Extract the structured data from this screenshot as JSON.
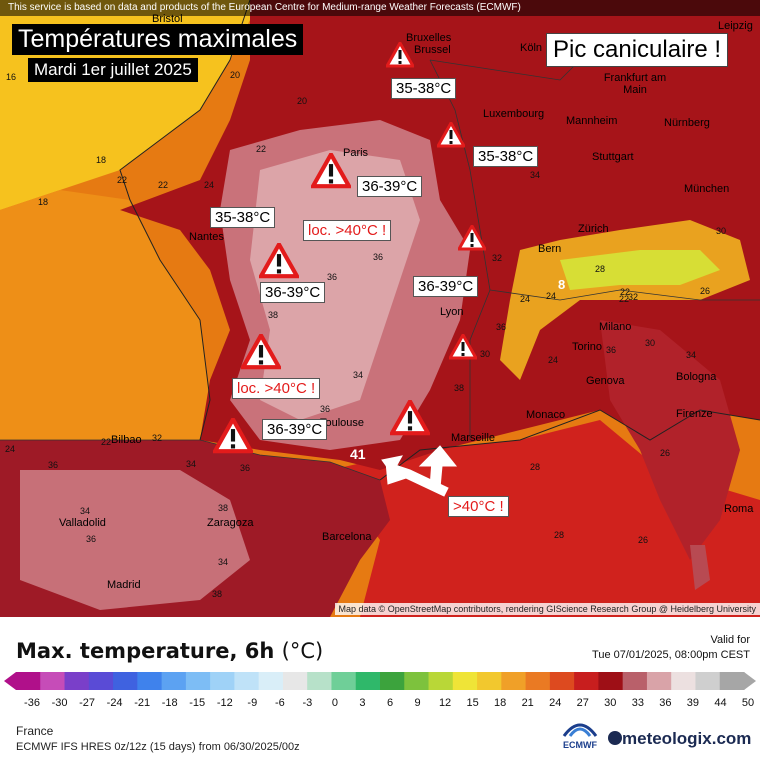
{
  "credit_top": "This service is based on data and products of the European Centre for Medium-range Weather Forecasts (ECMWF)",
  "title": "Températures maximales",
  "subtitle": "Mardi 1er juillet 2025",
  "headline": "Pic caniculaire !",
  "cities": [
    {
      "name": "Bristol"
    },
    {
      "name": "Bruxelles"
    },
    {
      "name": "Brussel"
    },
    {
      "name": "Köln"
    },
    {
      "name": "Leipzig"
    },
    {
      "name": "Frankfurt am Main"
    },
    {
      "name": "Luxembourg"
    },
    {
      "name": "Mannheim"
    },
    {
      "name": "Nürnberg"
    },
    {
      "name": "Paris"
    },
    {
      "name": "Stuttgart"
    },
    {
      "name": "München"
    },
    {
      "name": "Nantes"
    },
    {
      "name": "Zürich"
    },
    {
      "name": "Bern"
    },
    {
      "name": "Lyon"
    },
    {
      "name": "Milano"
    },
    {
      "name": "Torino"
    },
    {
      "name": "Genova"
    },
    {
      "name": "Bologna"
    },
    {
      "name": "Monaco"
    },
    {
      "name": "Marseille"
    },
    {
      "name": "Firenze"
    },
    {
      "name": "Bilbao"
    },
    {
      "name": "Valladolid"
    },
    {
      "name": "Zaragoza"
    },
    {
      "name": "Barcelona"
    },
    {
      "name": "Madrid"
    },
    {
      "name": "Roma"
    },
    {
      "name": "Toulouse"
    }
  ],
  "range_labels": [
    {
      "text": "35-38°C",
      "style": "black"
    },
    {
      "text": "35-38°C",
      "style": "black"
    },
    {
      "text": "36-39°C",
      "style": "black"
    },
    {
      "text": "35-38°C",
      "style": "black"
    },
    {
      "text": "loc. >40°C !",
      "style": "red"
    },
    {
      "text": "36-39°C",
      "style": "black"
    },
    {
      "text": "36-39°C",
      "style": "black"
    },
    {
      "text": "loc. >40°C !",
      "style": "red"
    },
    {
      "text": "36-39°C",
      "style": "black"
    },
    {
      "text": ">40°C !",
      "style": "red"
    }
  ],
  "warning_icon": "warning-triangle-icon",
  "map_numbers": [
    "16",
    "20",
    "18",
    "22",
    "20",
    "18",
    "22",
    "24",
    "34",
    "36",
    "38",
    "36",
    "34",
    "36",
    "38",
    "36",
    "32",
    "30",
    "34",
    "36",
    "24",
    "22",
    "28",
    "26",
    "30",
    "34",
    "28",
    "26",
    "22",
    "24",
    "32",
    "34",
    "36",
    "38",
    "36",
    "36",
    "38",
    "34",
    "41",
    "8",
    "28",
    "24",
    "22",
    "26",
    "30",
    "32",
    "22",
    "24"
  ],
  "map_credit": "Map data © OpenStreetMap contributors, rendering GIScience Research Group @ Heidelberg University",
  "legend": {
    "title": "Max. temperature, 6h",
    "unit": "(°C)",
    "valid_label": "Valid for",
    "valid_time": "Tue 07/01/2025, 08:00pm CEST",
    "ticks": [
      "-36",
      "-30",
      "-27",
      "-24",
      "-21",
      "-18",
      "-15",
      "-12",
      "-9",
      "-6",
      "-3",
      "0",
      "3",
      "6",
      "9",
      "12",
      "15",
      "18",
      "21",
      "24",
      "27",
      "30",
      "33",
      "36",
      "39",
      "44",
      "50"
    ],
    "region": "France",
    "model": "ECMWF IFS HRES 0z/12z (15 days) from  06/30/2025/00z",
    "ecmwf_logo": "ECMWF",
    "brand": "meteologix.com",
    "colors": [
      "#b0108a",
      "#c64cb8",
      "#7a3fc9",
      "#5a4bd6",
      "#3f62e0",
      "#3f82ec",
      "#5ca2f2",
      "#7dbdf5",
      "#9fd2f7",
      "#bfe2f8",
      "#d9eef8",
      "#e7e7e7",
      "#b7e1c9",
      "#6fcf98",
      "#2fb86a",
      "#3ca33d",
      "#7dc23d",
      "#b9d737",
      "#efe437",
      "#f2c82e",
      "#f0a028",
      "#ea7a23",
      "#dd4a1f",
      "#c81e1e",
      "#9e0f16",
      "#b9606a",
      "#d9a3a8",
      "#ece0e0",
      "#cfcfcf",
      "#a6a6a6"
    ]
  }
}
